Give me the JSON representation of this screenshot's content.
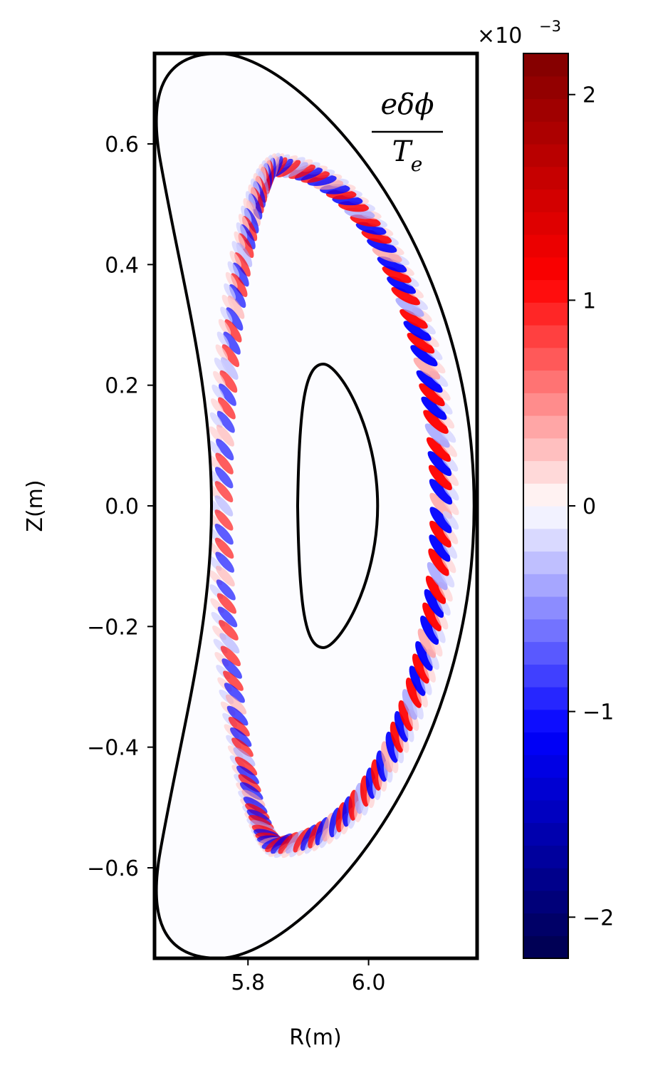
{
  "chart_data": {
    "type": "heatmap",
    "title": "",
    "plot_label": {
      "numerator": "eδϕ",
      "denominator_main": "T",
      "denominator_sub": "e"
    },
    "xlabel": "R(m)",
    "ylabel": "Z(m)",
    "xlim": [
      5.645,
      6.18
    ],
    "ylim": [
      -0.75,
      0.75
    ],
    "x_ticks": [
      {
        "value": 5.8,
        "label": "5.8"
      },
      {
        "value": 6.0,
        "label": "6.0"
      }
    ],
    "y_ticks": [
      {
        "value": 0.6,
        "label": "0.6"
      },
      {
        "value": 0.4,
        "label": "0.4"
      },
      {
        "value": 0.2,
        "label": "0.2"
      },
      {
        "value": 0.0,
        "label": "0.0"
      },
      {
        "value": -0.2,
        "label": "−0.2"
      },
      {
        "value": -0.4,
        "label": "−0.4"
      },
      {
        "value": -0.6,
        "label": "−0.6"
      }
    ],
    "boundaries": {
      "outer": {
        "r_left": 5.645,
        "r_right": 6.175,
        "z_half": 0.75
      },
      "inner": {
        "r_min": 5.88,
        "r_max": 6.015,
        "z_half": 0.235
      }
    },
    "fluctuation_ring": {
      "r_min": 5.76,
      "r_max": 6.12,
      "z_half": 0.56
    },
    "colorbar": {
      "colormap": "seismic",
      "vmin": -2.2,
      "vmax": 2.2,
      "levels": 40,
      "scale_prefix": "×10",
      "scale_exponent": "−3",
      "ticks": [
        {
          "value": 2,
          "label": "2"
        },
        {
          "value": 1,
          "label": "1"
        },
        {
          "value": 0,
          "label": "0"
        },
        {
          "value": -1,
          "label": "−1"
        },
        {
          "value": -2,
          "label": "−2"
        }
      ]
    },
    "colors": {
      "background_fill": "#fcfcff",
      "positive": "#ff0000",
      "negative": "#0000ff",
      "dark_positive": "#800000",
      "dark_negative": "#00004c",
      "axes": "#000000"
    }
  }
}
